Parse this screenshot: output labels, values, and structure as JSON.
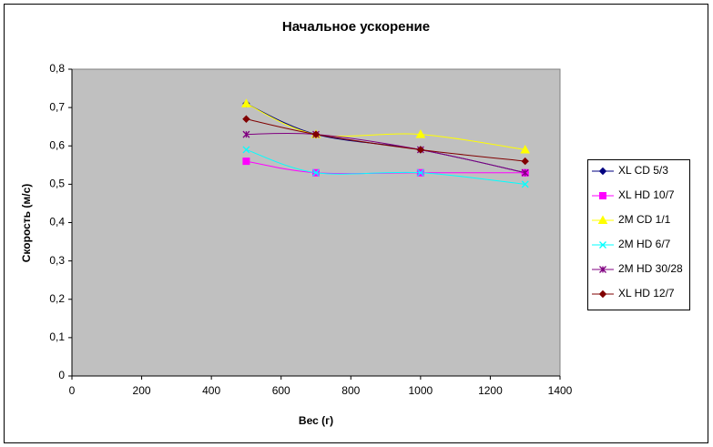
{
  "chart_data": {
    "type": "line",
    "title": "Начальное ускорение",
    "x_label": "Вес (г)",
    "y_label": "Скорость (м/с)",
    "x": [
      500,
      700,
      1000,
      1300
    ],
    "series": [
      {
        "name": "XL CD 5/3",
        "color": "#000080",
        "marker": "diamond",
        "values": [
          0.71,
          0.63,
          0.59,
          0.53
        ]
      },
      {
        "name": "XL HD 10/7",
        "color": "#ff00ff",
        "marker": "square",
        "values": [
          0.56,
          0.53,
          0.53,
          0.53
        ]
      },
      {
        "name": "2M CD 1/1",
        "color": "#ffff00",
        "marker": "triangle",
        "values": [
          0.71,
          0.63,
          0.63,
          0.59
        ]
      },
      {
        "name": "2M HD 6/7",
        "color": "#00ffff",
        "marker": "x",
        "values": [
          0.59,
          0.53,
          0.53,
          0.5
        ]
      },
      {
        "name": "2M HD 30/28",
        "color": "#800080",
        "marker": "star",
        "values": [
          0.63,
          0.63,
          0.59,
          0.53
        ]
      },
      {
        "name": "XL HD 12/7",
        "color": "#800000",
        "marker": "diamond",
        "values": [
          0.67,
          0.63,
          0.59,
          0.56
        ]
      }
    ],
    "xlim": [
      0,
      1400
    ],
    "xticks": [
      0,
      200,
      400,
      600,
      800,
      1000,
      1200,
      1400
    ],
    "ylim": [
      0,
      0.8
    ],
    "yticks": [
      0,
      {
        "value": 0.1,
        "label": "0,1"
      },
      {
        "value": 0.2,
        "label": "0,2"
      },
      {
        "value": 0.3,
        "label": "0,3"
      },
      {
        "value": 0.4,
        "label": "0,4"
      },
      {
        "value": 0.5,
        "label": "0,5"
      },
      {
        "value": 0.6,
        "label": "0,6"
      },
      {
        "value": 0.7,
        "label": "0,7"
      },
      {
        "value": 0.8,
        "label": "0,8"
      }
    ],
    "smooth": true,
    "legend": "right"
  }
}
